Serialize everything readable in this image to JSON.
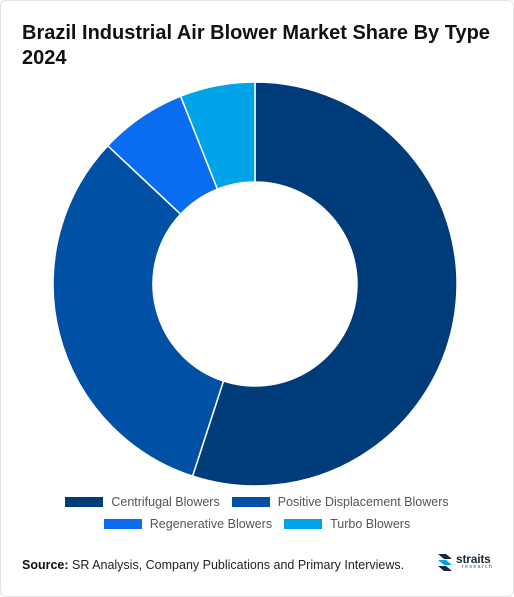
{
  "chart_data": {
    "type": "pie",
    "title": "Brazil Industrial Air Blower Market Share By Type 2024",
    "categories": [
      "Centrifugal Blowers",
      "Positive Displacement Blowers",
      "Regenerative Blowers",
      "Turbo Blowers"
    ],
    "values": [
      55,
      32,
      7,
      6
    ],
    "colors": [
      "#003b7a",
      "#0050a6",
      "#0a6cf0",
      "#00a3e8"
    ],
    "legend_position": "bottom",
    "donut": true
  },
  "footer": {
    "source_label": "Source:",
    "source_text": " SR Analysis, Company Publications and Primary Interviews."
  },
  "logo": {
    "word": "straits",
    "sub": "research"
  }
}
